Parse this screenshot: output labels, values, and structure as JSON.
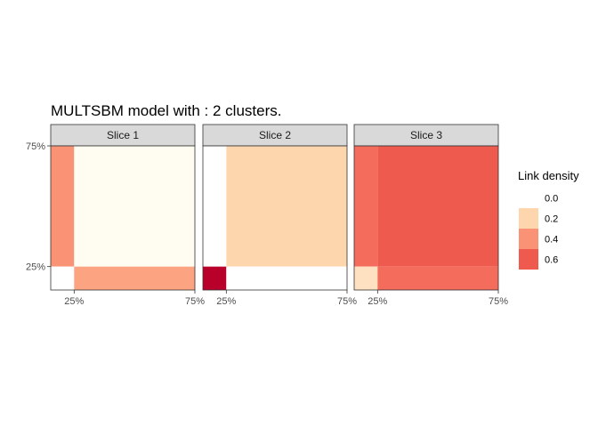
{
  "chart_data": {
    "type": "heatmap",
    "title": "MULTSBM model with : 2 clusters.",
    "xlabel": "",
    "ylabel": "",
    "x_ticks": [
      "25%",
      "75%"
    ],
    "y_ticks": [
      "75%",
      "25%"
    ],
    "cluster_proportions": [
      0.25,
      0.75
    ],
    "legend": {
      "title": "Link density",
      "position": "right",
      "breaks": [
        "0.0",
        "0.2",
        "0.4",
        "0.6"
      ],
      "range": [
        0,
        0.72
      ]
    },
    "grid": false,
    "panels": [
      {
        "name": "Slice  1",
        "matrix": [
          [
            0.4,
            0.02
          ],
          [
            0.0,
            0.35
          ]
        ]
      },
      {
        "name": "Slice  2",
        "matrix": [
          [
            0.0,
            0.2
          ],
          [
            0.72,
            0.0
          ]
        ]
      },
      {
        "name": "Slice  3",
        "matrix": [
          [
            0.52,
            0.6
          ],
          [
            0.15,
            0.52
          ]
        ]
      }
    ]
  }
}
